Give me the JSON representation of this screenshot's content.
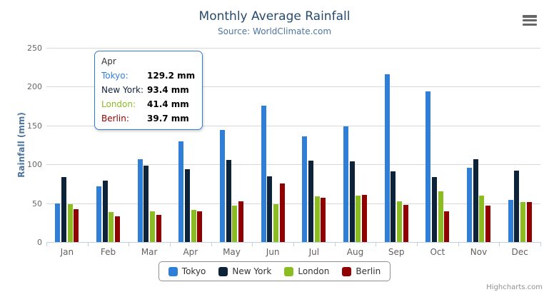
{
  "title": "Monthly Average Rainfall",
  "subtitle": "Source: WorldClimate.com",
  "credit": "Highcharts.com",
  "menu_icon": "hamburger-menu-icon",
  "y_axis": {
    "title": "Rainfall (mm)",
    "ticks": [
      0,
      50,
      100,
      150,
      200,
      250
    ]
  },
  "x_axis": {
    "categories": [
      "Jan",
      "Feb",
      "Mar",
      "Apr",
      "May",
      "Jun",
      "Jul",
      "Aug",
      "Sep",
      "Oct",
      "Nov",
      "Dec"
    ]
  },
  "tooltip": {
    "header": "Apr",
    "rows": [
      {
        "series": "Tokyo",
        "label": "Tokyo:",
        "value": "129.2 mm"
      },
      {
        "series": "New York",
        "label": "New York:",
        "value": "93.4 mm"
      },
      {
        "series": "London",
        "label": "London:",
        "value": "41.4 mm"
      },
      {
        "series": "Berlin",
        "label": "Berlin:",
        "value": "39.7 mm"
      }
    ]
  },
  "legend": [
    {
      "name": "Tokyo",
      "color": "#2f7ed8"
    },
    {
      "name": "New York",
      "color": "#0d233a"
    },
    {
      "name": "London",
      "color": "#8bbc21"
    },
    {
      "name": "Berlin",
      "color": "#910000"
    }
  ],
  "chart_data": {
    "type": "bar",
    "title": "Monthly Average Rainfall",
    "subtitle": "Source: WorldClimate.com",
    "categories": [
      "Jan",
      "Feb",
      "Mar",
      "Apr",
      "May",
      "Jun",
      "Jul",
      "Aug",
      "Sep",
      "Oct",
      "Nov",
      "Dec"
    ],
    "series": [
      {
        "name": "Tokyo",
        "color": "#2f7ed8",
        "values": [
          49.9,
          71.5,
          106.4,
          129.2,
          144.0,
          176.0,
          135.6,
          148.5,
          216.4,
          194.1,
          95.6,
          54.4
        ]
      },
      {
        "name": "New York",
        "color": "#0d233a",
        "values": [
          83.6,
          78.8,
          98.5,
          93.4,
          106.0,
          84.5,
          105.0,
          104.3,
          91.2,
          83.5,
          106.6,
          92.3
        ]
      },
      {
        "name": "London",
        "color": "#8bbc21",
        "values": [
          48.9,
          38.8,
          39.3,
          41.4,
          47.0,
          48.3,
          59.0,
          59.6,
          52.4,
          65.2,
          59.3,
          51.2
        ]
      },
      {
        "name": "Berlin",
        "color": "#910000",
        "values": [
          42.4,
          33.2,
          34.5,
          39.7,
          52.6,
          75.5,
          57.4,
          60.4,
          47.6,
          39.1,
          46.8,
          51.1
        ]
      }
    ],
    "xlabel": "",
    "ylabel": "Rainfall (mm)",
    "ylim": [
      0,
      250
    ],
    "yticks": [
      0,
      50,
      100,
      150,
      200,
      250
    ],
    "grid": true,
    "legend_position": "bottom",
    "tooltip_shown_for": "Apr"
  }
}
